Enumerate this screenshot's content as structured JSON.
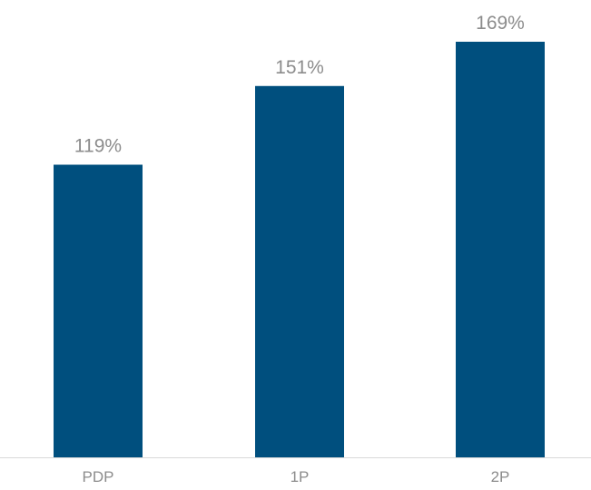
{
  "chart_data": {
    "type": "bar",
    "categories": [
      "PDP",
      "1P",
      "2P"
    ],
    "values": [
      119,
      151,
      169
    ],
    "data_labels": [
      "119%",
      "151%",
      "169%"
    ],
    "title": "",
    "xlabel": "",
    "ylabel": "",
    "ylim": [
      0,
      169
    ],
    "grid": false,
    "legend": "none",
    "colors": {
      "bar": "#004f7e",
      "label_text": "#8c8c8c",
      "axis_line": "#d9d9d9"
    }
  }
}
